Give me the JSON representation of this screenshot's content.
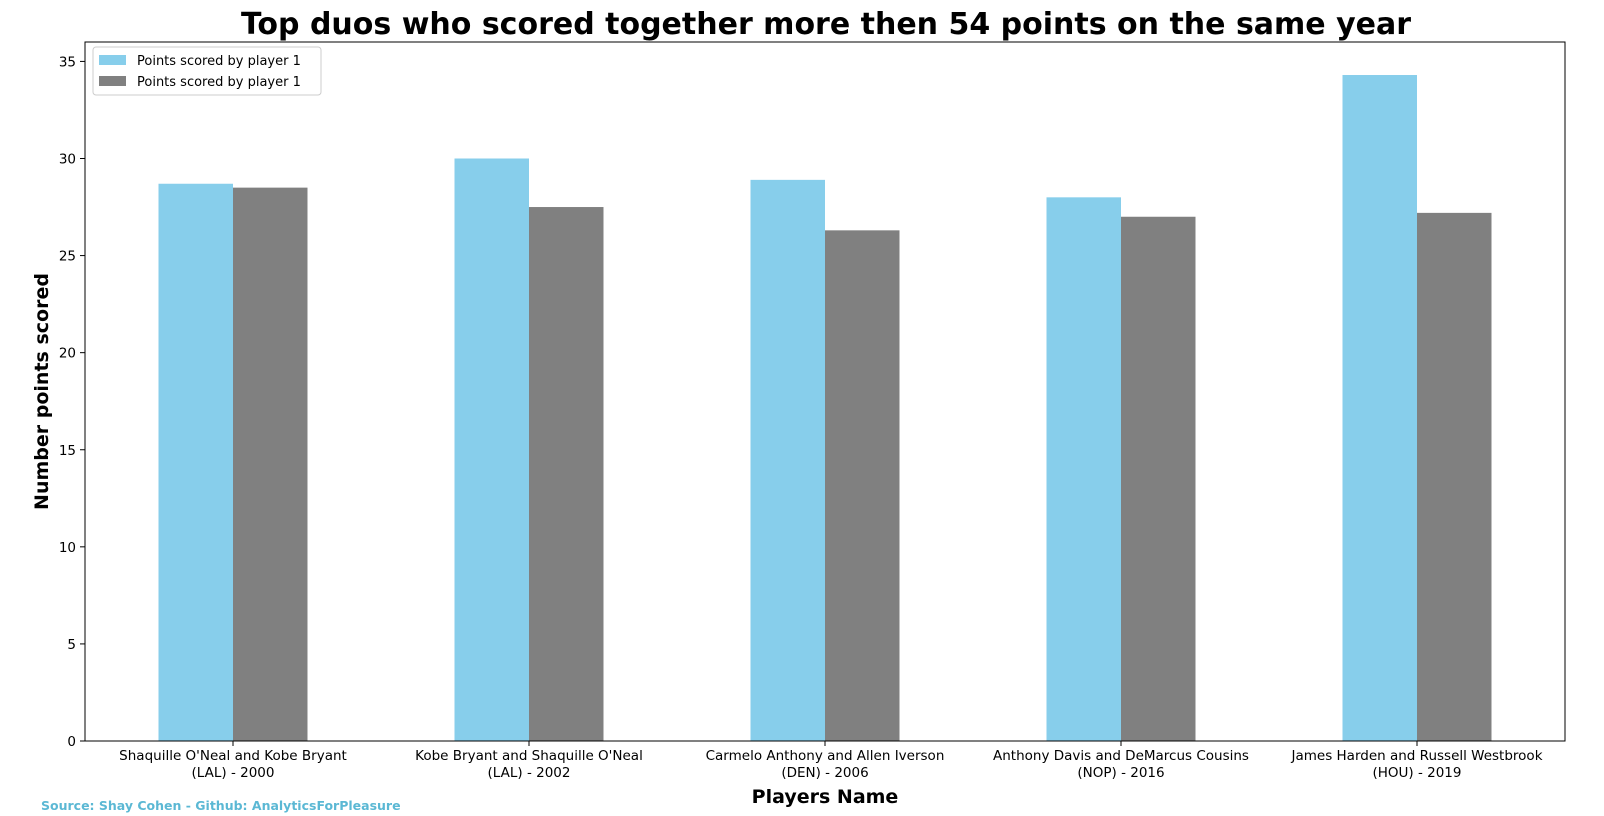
{
  "chart_data": {
    "type": "bar",
    "title": "Top duos who scored together more then 54 points on the same year",
    "xlabel": "Players Name",
    "ylabel": "Number points scored",
    "categories": [
      [
        "Shaquille O'Neal and Kobe Bryant",
        "(LAL) - 2000"
      ],
      [
        "Kobe Bryant and Shaquille O'Neal",
        "(LAL) - 2002"
      ],
      [
        "Carmelo Anthony and Allen Iverson",
        "(DEN) - 2006"
      ],
      [
        "Anthony Davis and DeMarcus Cousins",
        "(NOP) - 2016"
      ],
      [
        "James Harden and Russell Westbrook",
        "(HOU) - 2019"
      ]
    ],
    "series": [
      {
        "name": "Points scored by player 1",
        "color": "#87CEEB",
        "values": [
          28.7,
          30.0,
          28.9,
          28.0,
          34.3
        ]
      },
      {
        "name": "Points scored by player 1",
        "color": "#808080",
        "values": [
          28.5,
          27.5,
          26.3,
          27.0,
          27.2
        ]
      }
    ],
    "ylim": [
      0,
      36
    ],
    "yticks": [
      0,
      5,
      10,
      15,
      20,
      25,
      30,
      35
    ],
    "grid": false,
    "legend_position": "top-left",
    "source": "Source: Shay Cohen - Github: AnalyticsForPleasure",
    "source_color": "#5BB8D4"
  }
}
